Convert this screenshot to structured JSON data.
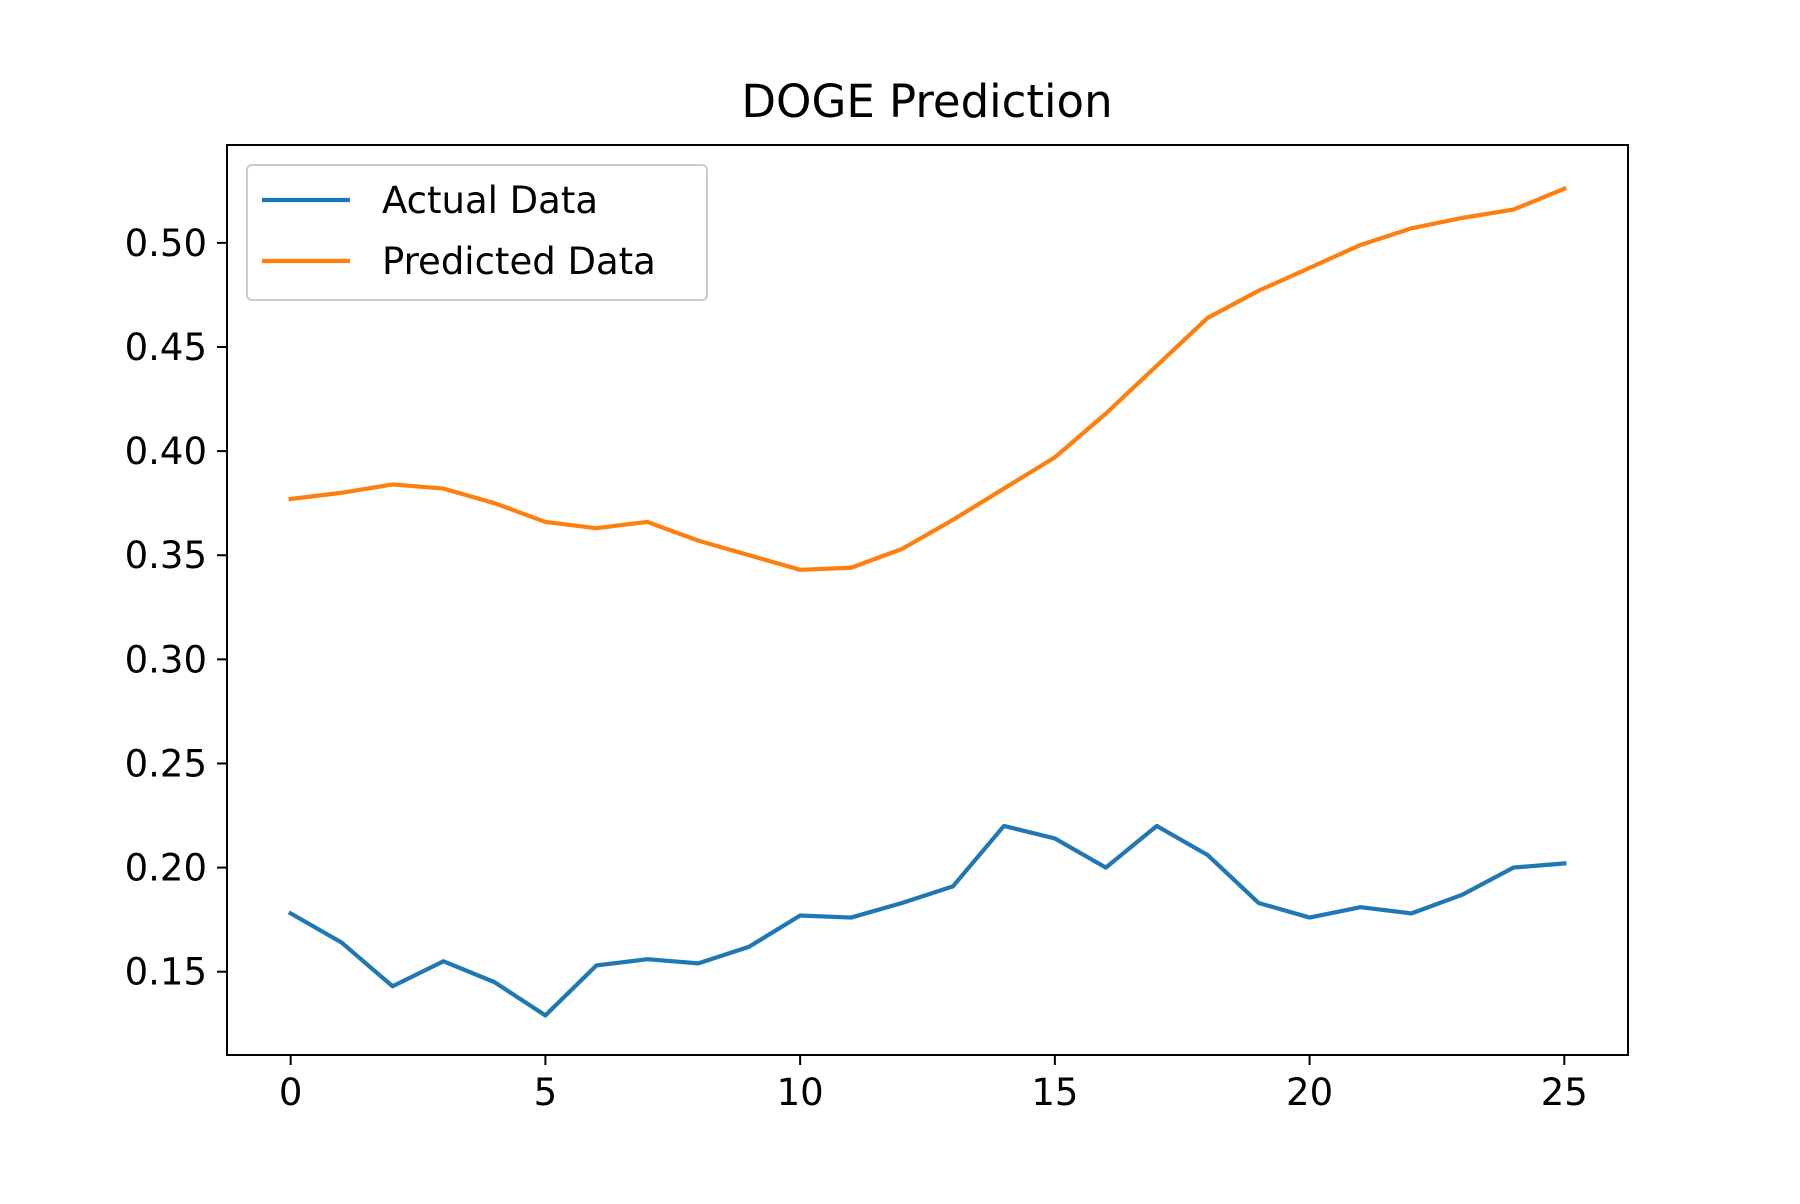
{
  "chart_data": {
    "type": "line",
    "title": "DOGE Prediction",
    "xlabel": "",
    "ylabel": "",
    "xlim": [
      -1.25,
      26.25
    ],
    "ylim": [
      0.11,
      0.547
    ],
    "x_ticks": [
      0,
      5,
      10,
      15,
      20,
      25
    ],
    "y_ticks": [
      0.15,
      0.2,
      0.25,
      0.3,
      0.35,
      0.4,
      0.45,
      0.5
    ],
    "grid": false,
    "legend": {
      "placement": "upper-left"
    },
    "x": [
      0,
      1,
      2,
      3,
      4,
      5,
      6,
      7,
      8,
      9,
      10,
      11,
      12,
      13,
      14,
      15,
      16,
      17,
      18,
      19,
      20,
      21,
      22,
      23,
      24,
      25
    ],
    "series": [
      {
        "name": "Actual Data",
        "color": "#1f77b4",
        "values": [
          0.178,
          0.164,
          0.143,
          0.155,
          0.145,
          0.129,
          0.153,
          0.156,
          0.154,
          0.162,
          0.177,
          0.176,
          0.183,
          0.191,
          0.22,
          0.214,
          0.2,
          0.22,
          0.206,
          0.183,
          0.176,
          0.181,
          0.178,
          0.187,
          0.2,
          0.202
        ]
      },
      {
        "name": "Predicted Data",
        "color": "#ff7f0e",
        "values": [
          0.377,
          0.38,
          0.384,
          0.382,
          0.375,
          0.366,
          0.363,
          0.366,
          0.357,
          0.35,
          0.343,
          0.344,
          0.353,
          0.367,
          0.382,
          0.397,
          0.418,
          0.441,
          0.464,
          0.477,
          0.488,
          0.499,
          0.507,
          0.512,
          0.516,
          0.526
        ]
      }
    ]
  }
}
